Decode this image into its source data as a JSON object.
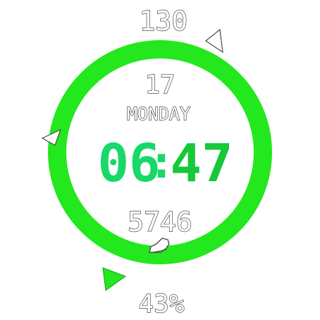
{
  "watch_face": {
    "heart_rate": "130",
    "date": "17",
    "weekday": "MONDAY",
    "time": {
      "hours": "06",
      "separator": ":",
      "minutes": "47"
    },
    "steps": "5746",
    "battery": "43%",
    "icons": {
      "steps": "shoe-icon"
    },
    "colors": {
      "ring": "#22e81d",
      "hours": "#18d86a",
      "minutes": "#16c83a",
      "background": "#ffffff"
    }
  }
}
